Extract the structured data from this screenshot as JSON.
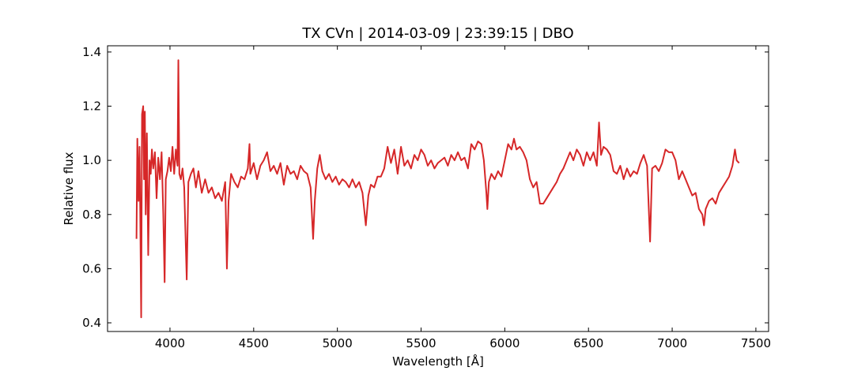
{
  "chart_data": {
    "type": "line",
    "title": "TX CVn | 2014-03-09 | 23:39:15 | DBO",
    "x_label": "Wavelength [Å]",
    "y_label": "Relative flux",
    "x": [
      3800,
      3805,
      3812,
      3818,
      3822,
      3828,
      3833,
      3840,
      3845,
      3850,
      3855,
      3862,
      3870,
      3878,
      3885,
      3892,
      3900,
      3910,
      3920,
      3930,
      3940,
      3950,
      3960,
      3968,
      3975,
      3985,
      3995,
      4005,
      4015,
      4025,
      4035,
      4045,
      4050,
      4056,
      4065,
      4075,
      4085,
      4100,
      4110,
      4125,
      4140,
      4155,
      4170,
      4190,
      4210,
      4230,
      4250,
      4270,
      4290,
      4310,
      4330,
      4340,
      4350,
      4365,
      4385,
      4405,
      4425,
      4445,
      4465,
      4475,
      4480,
      4500,
      4520,
      4540,
      4560,
      4580,
      4600,
      4620,
      4640,
      4660,
      4680,
      4700,
      4720,
      4740,
      4760,
      4780,
      4800,
      4820,
      4840,
      4855,
      4865,
      4880,
      4895,
      4910,
      4930,
      4950,
      4970,
      4990,
      5010,
      5030,
      5050,
      5070,
      5090,
      5110,
      5130,
      5150,
      5170,
      5185,
      5200,
      5220,
      5240,
      5260,
      5280,
      5300,
      5320,
      5340,
      5360,
      5380,
      5400,
      5420,
      5440,
      5460,
      5480,
      5500,
      5520,
      5540,
      5560,
      5580,
      5600,
      5620,
      5640,
      5660,
      5680,
      5700,
      5720,
      5740,
      5760,
      5780,
      5800,
      5820,
      5840,
      5860,
      5875,
      5890,
      5896,
      5905,
      5920,
      5940,
      5960,
      5980,
      6000,
      6020,
      6040,
      6055,
      6070,
      6090,
      6110,
      6130,
      6150,
      6170,
      6190,
      6210,
      6230,
      6250,
      6270,
      6290,
      6310,
      6330,
      6350,
      6370,
      6390,
      6410,
      6430,
      6450,
      6470,
      6490,
      6510,
      6530,
      6550,
      6563,
      6575,
      6590,
      6610,
      6630,
      6650,
      6670,
      6690,
      6710,
      6730,
      6750,
      6770,
      6790,
      6810,
      6830,
      6850,
      6868,
      6880,
      6900,
      6920,
      6940,
      6960,
      6980,
      7000,
      7020,
      7040,
      7060,
      7080,
      7100,
      7120,
      7140,
      7160,
      7180,
      7190,
      7200,
      7220,
      7240,
      7260,
      7280,
      7300,
      7320,
      7340,
      7360,
      7375,
      7385,
      7400
    ],
    "series": [
      {
        "color": "#d62728",
        "values": [
          0.71,
          1.08,
          0.85,
          1.05,
          0.83,
          0.42,
          1.17,
          1.2,
          0.93,
          1.18,
          0.8,
          1.1,
          0.65,
          1.0,
          0.95,
          1.04,
          0.97,
          1.03,
          0.86,
          1.01,
          0.93,
          1.03,
          0.8,
          0.55,
          0.93,
          0.96,
          1.01,
          0.96,
          1.05,
          0.95,
          1.04,
          0.98,
          1.37,
          0.95,
          0.93,
          0.97,
          0.9,
          0.56,
          0.92,
          0.95,
          0.97,
          0.9,
          0.96,
          0.88,
          0.93,
          0.88,
          0.9,
          0.86,
          0.88,
          0.85,
          0.92,
          0.6,
          0.85,
          0.95,
          0.92,
          0.9,
          0.94,
          0.93,
          0.97,
          1.06,
          0.95,
          0.99,
          0.93,
          0.98,
          1.0,
          1.03,
          0.96,
          0.98,
          0.95,
          0.99,
          0.91,
          0.98,
          0.95,
          0.96,
          0.93,
          0.98,
          0.96,
          0.95,
          0.9,
          0.71,
          0.85,
          0.97,
          1.02,
          0.96,
          0.93,
          0.95,
          0.92,
          0.94,
          0.91,
          0.93,
          0.92,
          0.9,
          0.93,
          0.9,
          0.92,
          0.88,
          0.76,
          0.87,
          0.91,
          0.9,
          0.94,
          0.94,
          0.97,
          1.05,
          0.99,
          1.04,
          0.95,
          1.05,
          0.98,
          1.0,
          0.97,
          1.02,
          1.0,
          1.04,
          1.02,
          0.98,
          1.0,
          0.97,
          0.99,
          1.0,
          1.01,
          0.98,
          1.02,
          1.0,
          1.03,
          1.0,
          1.01,
          0.97,
          1.06,
          1.04,
          1.07,
          1.06,
          1.0,
          0.88,
          0.82,
          0.92,
          0.95,
          0.93,
          0.96,
          0.94,
          1.0,
          1.06,
          1.04,
          1.08,
          1.04,
          1.05,
          1.03,
          1.0,
          0.93,
          0.9,
          0.92,
          0.84,
          0.84,
          0.86,
          0.88,
          0.9,
          0.92,
          0.95,
          0.97,
          1.0,
          1.03,
          1.0,
          1.04,
          1.02,
          0.98,
          1.03,
          1.0,
          1.03,
          0.98,
          1.14,
          1.02,
          1.05,
          1.04,
          1.02,
          0.96,
          0.95,
          0.98,
          0.93,
          0.97,
          0.94,
          0.96,
          0.95,
          0.99,
          1.02,
          0.98,
          0.7,
          0.97,
          0.98,
          0.96,
          0.99,
          1.04,
          1.03,
          1.03,
          1.0,
          0.93,
          0.96,
          0.93,
          0.9,
          0.87,
          0.88,
          0.82,
          0.8,
          0.76,
          0.82,
          0.85,
          0.86,
          0.84,
          0.88,
          0.9,
          0.92,
          0.94,
          0.98,
          1.04,
          1.0,
          0.99
        ]
      }
    ],
    "xlim": [
      3627,
      7576
    ],
    "ylim": [
      0.368,
      1.423
    ],
    "xticks": [
      4000,
      4500,
      5000,
      5500,
      6000,
      6500,
      7000,
      7500
    ],
    "yticks": [
      0.4,
      0.6,
      0.8,
      {
        "value": 1,
        "label": "1.0"
      },
      1.2,
      1.4
    ]
  }
}
